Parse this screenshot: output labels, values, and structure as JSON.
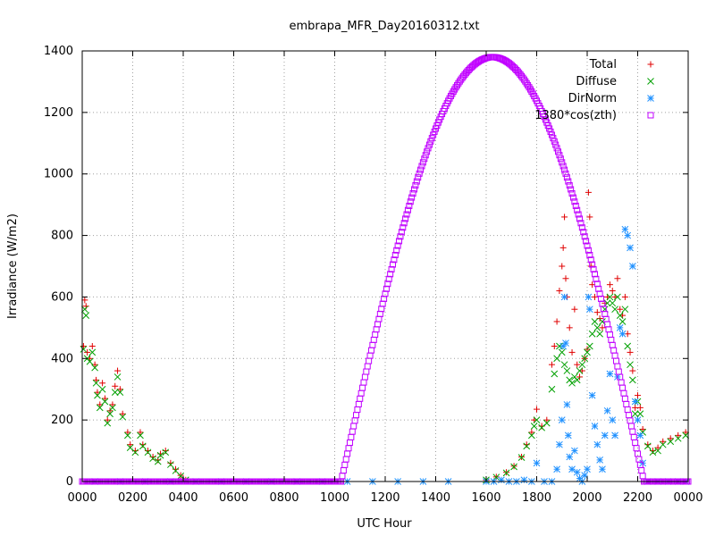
{
  "chart_data": {
    "type": "scatter",
    "title": "embrapa_MFR_Day20160312.txt",
    "xlabel": "UTC Hour",
    "ylabel": "Irradiance (W/m2)",
    "xlim": [
      0,
      24
    ],
    "ylim": [
      0,
      1400
    ],
    "grid": true,
    "legend_position": "top-right",
    "x_ticks": [
      {
        "value": 0,
        "label": "0000"
      },
      {
        "value": 2,
        "label": "0200"
      },
      {
        "value": 4,
        "label": "0400"
      },
      {
        "value": 6,
        "label": "0600"
      },
      {
        "value": 8,
        "label": "0800"
      },
      {
        "value": 10,
        "label": "1000"
      },
      {
        "value": 12,
        "label": "1200"
      },
      {
        "value": 14,
        "label": "1400"
      },
      {
        "value": 16,
        "label": "1600"
      },
      {
        "value": 18,
        "label": "1800"
      },
      {
        "value": 20,
        "label": "2000"
      },
      {
        "value": 22,
        "label": "2200"
      },
      {
        "value": 24,
        "label": "0000"
      }
    ],
    "y_ticks": [
      0,
      200,
      400,
      600,
      800,
      1000,
      1200,
      1400
    ],
    "series": [
      {
        "name": "Total",
        "marker": "plus",
        "color": "#e00000",
        "points": [
          [
            0.05,
            440
          ],
          [
            0.1,
            590
          ],
          [
            0.15,
            570
          ],
          [
            0.2,
            420
          ],
          [
            0.3,
            400
          ],
          [
            0.4,
            440
          ],
          [
            0.5,
            380
          ],
          [
            0.55,
            330
          ],
          [
            0.6,
            290
          ],
          [
            0.7,
            250
          ],
          [
            0.8,
            320
          ],
          [
            0.9,
            270
          ],
          [
            1.0,
            200
          ],
          [
            1.1,
            230
          ],
          [
            1.2,
            250
          ],
          [
            1.3,
            310
          ],
          [
            1.4,
            360
          ],
          [
            1.5,
            300
          ],
          [
            1.6,
            220
          ],
          [
            1.8,
            160
          ],
          [
            1.9,
            120
          ],
          [
            2.1,
            100
          ],
          [
            2.3,
            160
          ],
          [
            2.4,
            120
          ],
          [
            2.6,
            100
          ],
          [
            2.8,
            80
          ],
          [
            3.0,
            70
          ],
          [
            3.1,
            90
          ],
          [
            3.3,
            100
          ],
          [
            3.5,
            60
          ],
          [
            3.7,
            40
          ],
          [
            3.9,
            20
          ],
          [
            4.1,
            5
          ],
          [
            16.0,
            5
          ],
          [
            16.4,
            15
          ],
          [
            16.8,
            30
          ],
          [
            17.1,
            50
          ],
          [
            17.4,
            80
          ],
          [
            17.6,
            120
          ],
          [
            17.8,
            160
          ],
          [
            17.9,
            200
          ],
          [
            18.0,
            235
          ],
          [
            18.2,
            180
          ],
          [
            18.4,
            200
          ],
          [
            18.6,
            380
          ],
          [
            18.7,
            440
          ],
          [
            18.8,
            520
          ],
          [
            18.9,
            620
          ],
          [
            19.0,
            700
          ],
          [
            19.05,
            760
          ],
          [
            19.1,
            860
          ],
          [
            19.15,
            660
          ],
          [
            19.2,
            600
          ],
          [
            19.3,
            500
          ],
          [
            19.4,
            420
          ],
          [
            19.5,
            560
          ],
          [
            19.6,
            380
          ],
          [
            19.7,
            340
          ],
          [
            19.8,
            360
          ],
          [
            19.9,
            400
          ],
          [
            20.0,
            430
          ],
          [
            20.05,
            940
          ],
          [
            20.1,
            860
          ],
          [
            20.15,
            700
          ],
          [
            20.2,
            640
          ],
          [
            20.3,
            600
          ],
          [
            20.4,
            550
          ],
          [
            20.5,
            530
          ],
          [
            20.6,
            500
          ],
          [
            20.7,
            580
          ],
          [
            20.8,
            600
          ],
          [
            20.9,
            640
          ],
          [
            21.0,
            620
          ],
          [
            21.1,
            600
          ],
          [
            21.2,
            660
          ],
          [
            21.3,
            560
          ],
          [
            21.4,
            540
          ],
          [
            21.5,
            600
          ],
          [
            21.6,
            480
          ],
          [
            21.7,
            420
          ],
          [
            21.8,
            360
          ],
          [
            21.9,
            240
          ],
          [
            22.0,
            280
          ],
          [
            22.1,
            240
          ],
          [
            22.2,
            170
          ],
          [
            22.4,
            120
          ],
          [
            22.6,
            100
          ],
          [
            22.8,
            110
          ],
          [
            23.0,
            130
          ],
          [
            23.3,
            140
          ],
          [
            23.6,
            150
          ],
          [
            23.9,
            160
          ]
        ]
      },
      {
        "name": "Diffuse",
        "marker": "cross",
        "color": "#00a000",
        "points": [
          [
            0.05,
            430
          ],
          [
            0.1,
            560
          ],
          [
            0.15,
            540
          ],
          [
            0.2,
            400
          ],
          [
            0.3,
            390
          ],
          [
            0.4,
            420
          ],
          [
            0.5,
            370
          ],
          [
            0.55,
            320
          ],
          [
            0.6,
            280
          ],
          [
            0.7,
            240
          ],
          [
            0.8,
            300
          ],
          [
            0.9,
            260
          ],
          [
            1.0,
            190
          ],
          [
            1.1,
            220
          ],
          [
            1.2,
            240
          ],
          [
            1.3,
            290
          ],
          [
            1.4,
            340
          ],
          [
            1.5,
            290
          ],
          [
            1.6,
            210
          ],
          [
            1.8,
            150
          ],
          [
            1.9,
            110
          ],
          [
            2.1,
            95
          ],
          [
            2.3,
            150
          ],
          [
            2.4,
            115
          ],
          [
            2.6,
            95
          ],
          [
            2.8,
            75
          ],
          [
            3.0,
            65
          ],
          [
            3.1,
            85
          ],
          [
            3.3,
            95
          ],
          [
            3.5,
            55
          ],
          [
            3.7,
            35
          ],
          [
            3.9,
            18
          ],
          [
            4.1,
            5
          ],
          [
            16.0,
            5
          ],
          [
            16.4,
            14
          ],
          [
            16.8,
            28
          ],
          [
            17.1,
            48
          ],
          [
            17.4,
            78
          ],
          [
            17.6,
            115
          ],
          [
            17.8,
            150
          ],
          [
            17.9,
            180
          ],
          [
            18.0,
            200
          ],
          [
            18.2,
            175
          ],
          [
            18.4,
            190
          ],
          [
            18.6,
            300
          ],
          [
            18.7,
            350
          ],
          [
            18.8,
            400
          ],
          [
            18.9,
            440
          ],
          [
            19.0,
            420
          ],
          [
            19.1,
            380
          ],
          [
            19.2,
            360
          ],
          [
            19.3,
            330
          ],
          [
            19.4,
            320
          ],
          [
            19.5,
            340
          ],
          [
            19.6,
            330
          ],
          [
            19.7,
            360
          ],
          [
            19.8,
            380
          ],
          [
            19.9,
            400
          ],
          [
            20.0,
            420
          ],
          [
            20.1,
            440
          ],
          [
            20.2,
            480
          ],
          [
            20.3,
            520
          ],
          [
            20.4,
            500
          ],
          [
            20.5,
            480
          ],
          [
            20.6,
            520
          ],
          [
            20.7,
            560
          ],
          [
            20.8,
            580
          ],
          [
            20.9,
            600
          ],
          [
            21.0,
            580
          ],
          [
            21.1,
            560
          ],
          [
            21.2,
            600
          ],
          [
            21.3,
            540
          ],
          [
            21.4,
            520
          ],
          [
            21.5,
            560
          ],
          [
            21.6,
            440
          ],
          [
            21.7,
            380
          ],
          [
            21.8,
            330
          ],
          [
            21.9,
            220
          ],
          [
            22.0,
            260
          ],
          [
            22.1,
            220
          ],
          [
            22.2,
            160
          ],
          [
            22.4,
            115
          ],
          [
            22.6,
            95
          ],
          [
            22.8,
            100
          ],
          [
            23.0,
            120
          ],
          [
            23.3,
            130
          ],
          [
            23.6,
            140
          ],
          [
            23.9,
            150
          ]
        ]
      },
      {
        "name": "DirNorm",
        "marker": "star",
        "color": "#1e90ff",
        "points": [
          [
            0.5,
            0
          ],
          [
            1.5,
            0
          ],
          [
            2.5,
            0
          ],
          [
            3.5,
            0
          ],
          [
            4.5,
            0
          ],
          [
            5.5,
            0
          ],
          [
            6.5,
            0
          ],
          [
            7.5,
            0
          ],
          [
            8.5,
            0
          ],
          [
            9.5,
            0
          ],
          [
            10.5,
            0
          ],
          [
            11.5,
            0
          ],
          [
            12.5,
            0
          ],
          [
            13.5,
            0
          ],
          [
            14.5,
            0
          ],
          [
            16.0,
            0
          ],
          [
            16.3,
            0
          ],
          [
            16.6,
            5
          ],
          [
            16.9,
            0
          ],
          [
            17.2,
            0
          ],
          [
            17.5,
            5
          ],
          [
            17.8,
            0
          ],
          [
            18.0,
            60
          ],
          [
            18.3,
            0
          ],
          [
            18.6,
            0
          ],
          [
            18.8,
            40
          ],
          [
            18.9,
            120
          ],
          [
            19.0,
            200
          ],
          [
            19.05,
            440
          ],
          [
            19.1,
            600
          ],
          [
            19.15,
            450
          ],
          [
            19.2,
            250
          ],
          [
            19.25,
            150
          ],
          [
            19.3,
            80
          ],
          [
            19.4,
            40
          ],
          [
            19.5,
            100
          ],
          [
            19.6,
            30
          ],
          [
            19.7,
            10
          ],
          [
            19.8,
            0
          ],
          [
            19.9,
            20
          ],
          [
            20.0,
            40
          ],
          [
            20.05,
            600
          ],
          [
            20.1,
            560
          ],
          [
            20.2,
            280
          ],
          [
            20.3,
            180
          ],
          [
            20.4,
            120
          ],
          [
            20.5,
            70
          ],
          [
            20.6,
            40
          ],
          [
            20.7,
            150
          ],
          [
            20.8,
            230
          ],
          [
            20.9,
            350
          ],
          [
            21.0,
            200
          ],
          [
            21.1,
            150
          ],
          [
            21.2,
            340
          ],
          [
            21.3,
            500
          ],
          [
            21.4,
            480
          ],
          [
            21.5,
            820
          ],
          [
            21.6,
            800
          ],
          [
            21.7,
            760
          ],
          [
            21.8,
            700
          ],
          [
            21.9,
            260
          ],
          [
            22.0,
            200
          ],
          [
            22.1,
            150
          ],
          [
            22.2,
            60
          ],
          [
            22.4,
            0
          ],
          [
            22.8,
            0
          ],
          [
            23.2,
            0
          ],
          [
            23.6,
            0
          ],
          [
            23.9,
            0
          ]
        ]
      },
      {
        "name": "1380*cos(zth)",
        "marker": "square",
        "color": "#c000ff",
        "formula": {
          "peak": 1380,
          "peak_hour": 16.25,
          "rise_hour": 10.25,
          "set_hour": 22.25
        }
      }
    ]
  }
}
